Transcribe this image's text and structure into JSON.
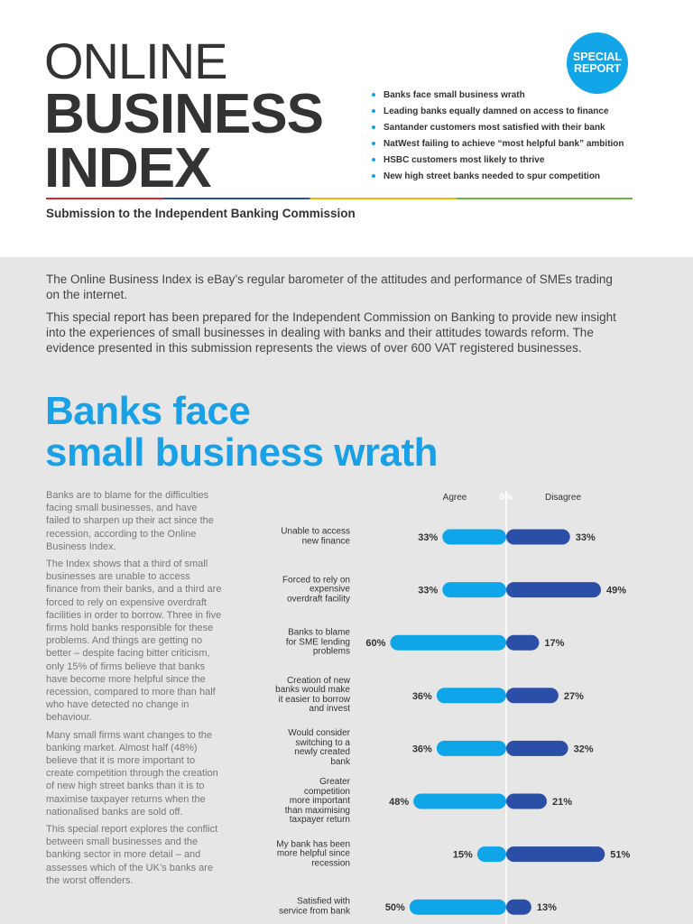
{
  "header": {
    "title": [
      "ONLINE",
      "BUSINESS",
      "INDEX"
    ],
    "subtitle": "Submission to the Independent Banking  Commission",
    "badge": [
      "SPECIAL",
      "REPORT"
    ],
    "bullets": [
      "Banks face small business wrath",
      "Leading banks equally damned on access to finance",
      "Santander customers most satisfied with their bank",
      "NatWest failing to achieve “most helpful bank” ambition",
      "HSBC customers most likely to thrive",
      "New high street banks needed to spur competition"
    ]
  },
  "intro": [
    "The Online Business Index is eBay’s regular barometer of the attitudes and performance of SMEs trading on the internet.",
    "This special report has been prepared for the Independent Commission on Banking to provide new insight into the experiences of small businesses in dealing with banks and their attitudes towards reform. The evidence presented in this submission represents the views of over 600 VAT registered businesses."
  ],
  "headline": [
    "Banks face",
    "small business wrath"
  ],
  "body": [
    "Banks are to blame for the difficulties facing small businesses, and have failed to sharpen up their act since the recession, according to the Online Business Index.",
    "The Index shows that a third of small businesses are unable to access finance from their banks, and a third are forced to rely on expensive overdraft facilities in order to borrow. Three in five firms hold banks responsible for these problems. And things are getting no better – despite facing bitter criticism, only 15% of firms believe that banks have become more helpful since the recession, compared to more than half who have detected no change in behaviour.",
    "Many small firms want changes to the banking market. Almost half (48%) believe that it is more important to create competition through the creation of new high street banks than it is to maximise taxpayer returns when the nationalised banks are sold off.",
    "This special report explores the conflict between small businesses and the banking sector in more detail – and assesses which of the UK’s banks are the worst offenders."
  ],
  "chart_data": {
    "type": "diverging_bar",
    "categories": [
      "Unable to access\nnew finance",
      "Forced to rely on\nexpensive\noverdraft facility",
      "Banks to blame\nfor SME lending\nproblems",
      "Creation of new\nbanks would make\nit easier to borrow\nand invest",
      "Would consider\nswitching to a\nnewly created\nbank",
      "Greater\ncompetition\nmore important\nthan maximising\ntaxpayer return",
      "My bank has been\nmore helpful since\nrecession",
      "Satisfied with\nservice from bank"
    ],
    "series": [
      {
        "name": "Agree",
        "color": "#0ea5e9",
        "values": [
          33,
          33,
          60,
          36,
          36,
          48,
          15,
          50
        ],
        "value_labels": [
          "33%",
          "33%",
          "60%",
          "36%",
          "36%",
          "48%",
          "15%",
          "50%"
        ]
      },
      {
        "name": "Disagree",
        "color": "#2b4ea6",
        "values": [
          33,
          49,
          17,
          27,
          32,
          21,
          51,
          13
        ],
        "value_labels": [
          "33%",
          "49%",
          "17%",
          "27%",
          "32%",
          "21%",
          "51%",
          "13%"
        ]
      }
    ],
    "xlim": [
      0,
      70
    ],
    "xticks": [
      {
        "value": 0,
        "label": "0%"
      }
    ]
  }
}
